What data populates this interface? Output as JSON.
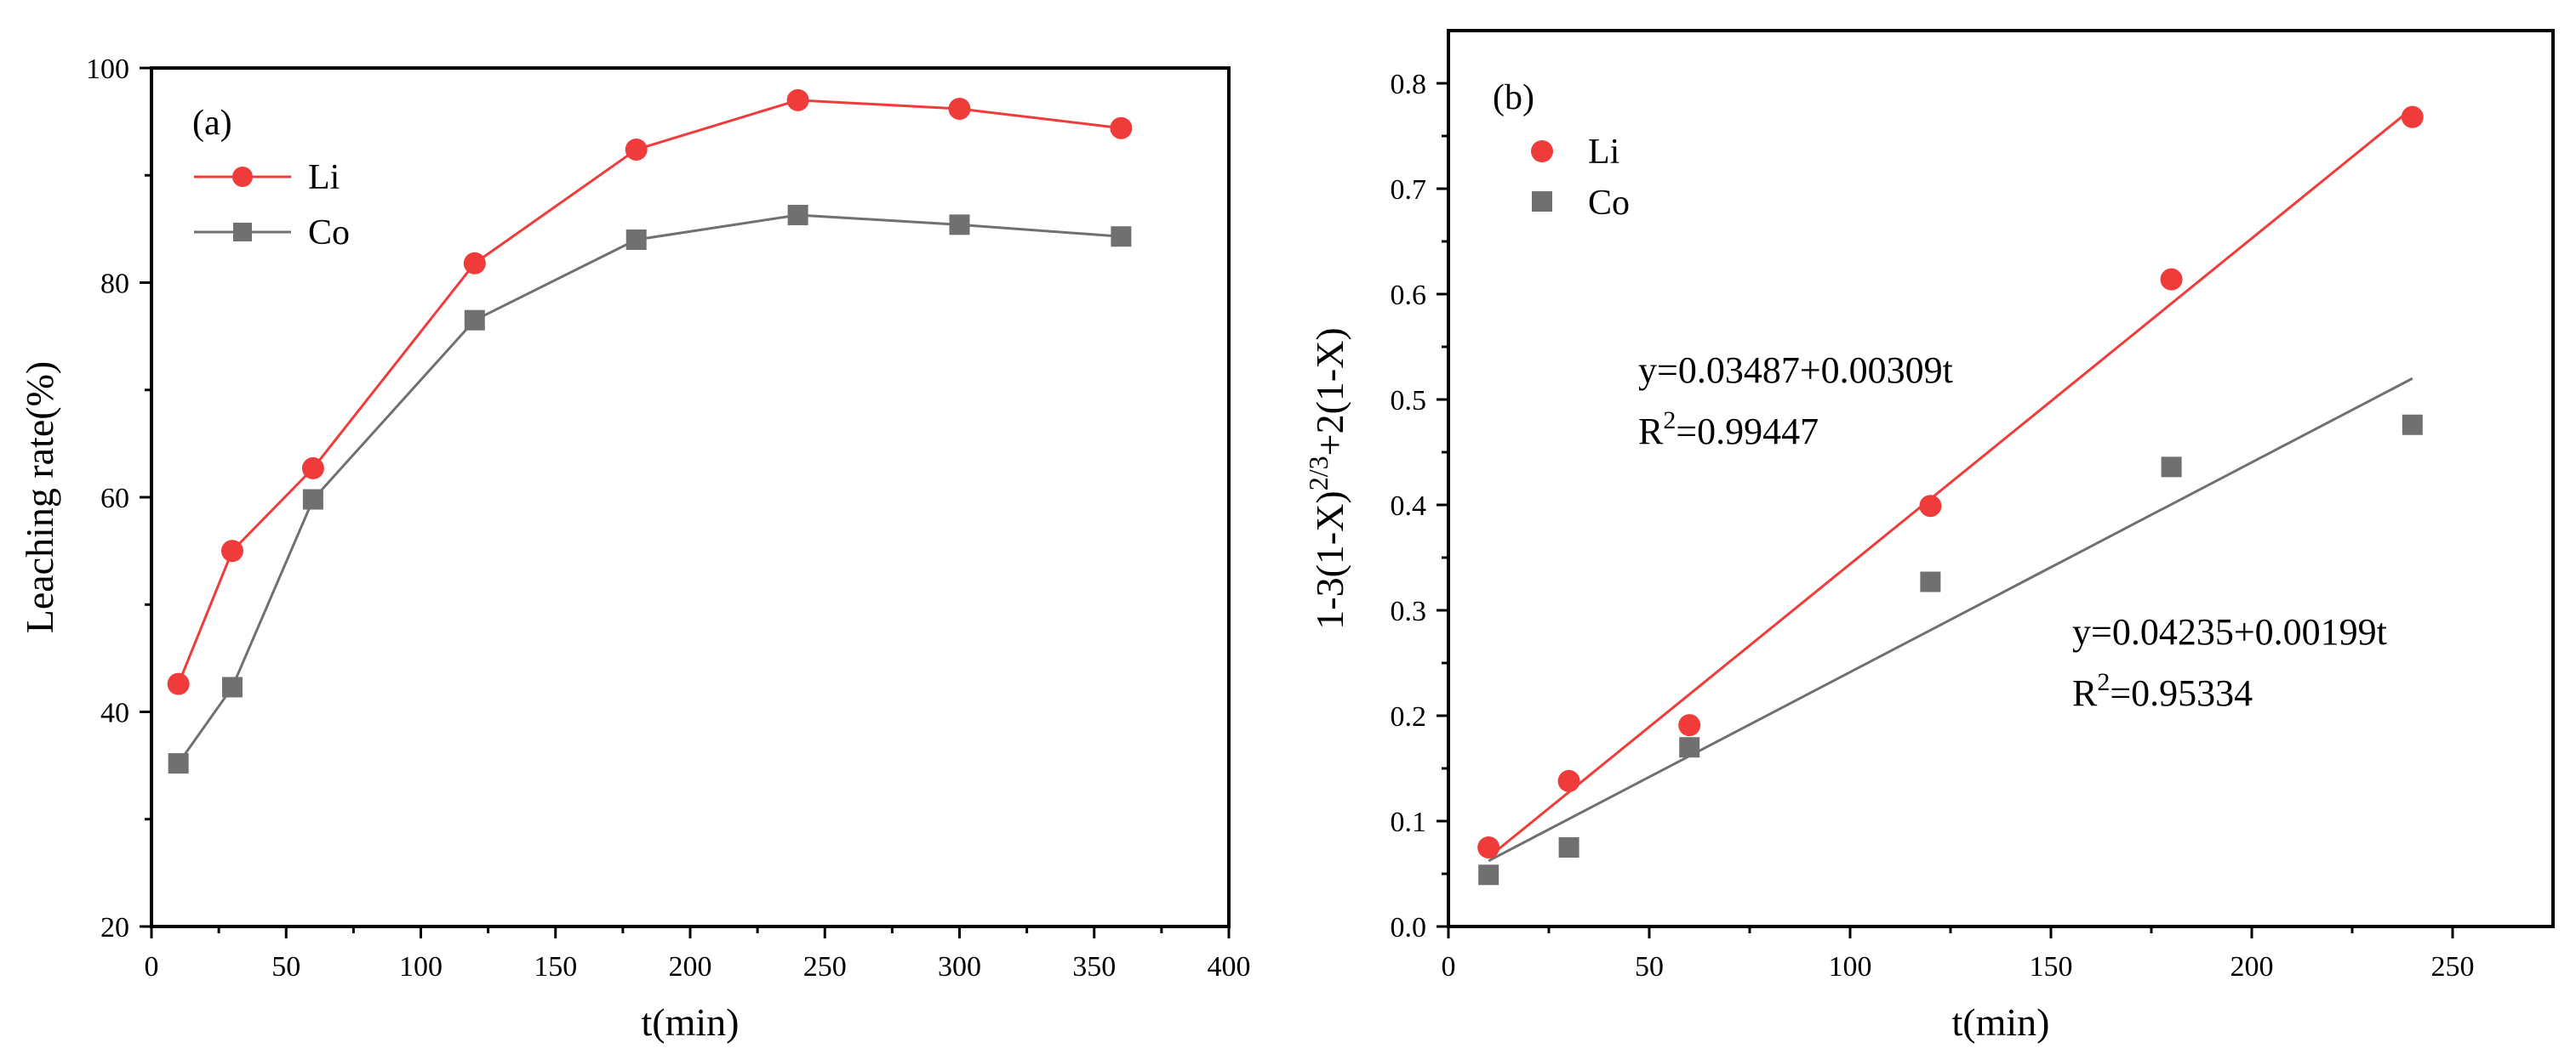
{
  "chart_data": [
    {
      "type": "line",
      "panel_label": "(a)",
      "xlabel": "t(min)",
      "ylabel": "Leaching rate(%)",
      "xlim": [
        0,
        400
      ],
      "ylim": [
        20,
        100
      ],
      "xticks": [
        0,
        50,
        100,
        150,
        200,
        250,
        300,
        350,
        400
      ],
      "yticks": [
        20,
        40,
        60,
        80,
        100
      ],
      "x": [
        10,
        30,
        60,
        120,
        180,
        240,
        300,
        360
      ],
      "grid": false,
      "legend_position": "top-left",
      "series": [
        {
          "name": "Li",
          "marker": "circle",
          "color": "#f03b3b",
          "values": [
            42.6,
            55.0,
            62.7,
            81.8,
            92.4,
            97.0,
            96.2,
            94.4
          ]
        },
        {
          "name": "Co",
          "marker": "square",
          "color": "#707070",
          "values": [
            35.2,
            42.3,
            59.8,
            76.5,
            84.0,
            86.3,
            85.4,
            84.3
          ]
        }
      ]
    },
    {
      "type": "scatter",
      "panel_label": "(b)",
      "xlabel": "t(min)",
      "ylabel_main": "1-3(1-X)",
      "ylabel_sup": "2/3",
      "ylabel_tail": "+2(1-X)",
      "xlim": [
        0,
        275
      ],
      "ylim": [
        0,
        0.85
      ],
      "xticks": [
        0,
        50,
        100,
        150,
        200,
        250
      ],
      "yticks": [
        0.0,
        0.1,
        0.2,
        0.3,
        0.4,
        0.5,
        0.6,
        0.7,
        0.8
      ],
      "grid": false,
      "legend_position": "top-left",
      "series": [
        {
          "name": "Li",
          "marker": "circle",
          "color": "#f03b3b",
          "x": [
            10,
            30,
            60,
            120,
            180,
            240
          ],
          "values": [
            0.075,
            0.138,
            0.191,
            0.399,
            0.614,
            0.768
          ],
          "fit": {
            "intercept": 0.03487,
            "slope": 0.00309,
            "x_range": [
              10,
              240
            ],
            "color": "#f03b3b"
          }
        },
        {
          "name": "Co",
          "marker": "square",
          "color": "#707070",
          "x": [
            10,
            30,
            60,
            120,
            180,
            240
          ],
          "values": [
            0.049,
            0.075,
            0.17,
            0.327,
            0.436,
            0.476
          ],
          "fit": {
            "intercept": 0.04235,
            "slope": 0.00199,
            "x_range": [
              10,
              240
            ],
            "color": "#707070"
          }
        }
      ],
      "annotations": [
        {
          "eq": "y=0.03487+0.00309t",
          "r2_base": "R",
          "r2_sup": "2",
          "r2_tail": "=0.99447"
        },
        {
          "eq": "y=0.04235+0.00199t",
          "r2_base": "R",
          "r2_sup": "2",
          "r2_tail": "=0.95334"
        }
      ]
    }
  ]
}
